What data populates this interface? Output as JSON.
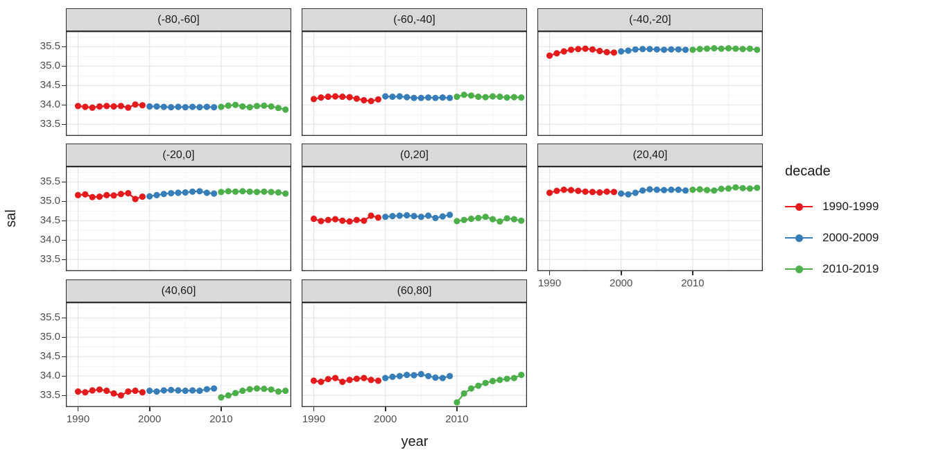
{
  "chart_data": {
    "type": "scatter",
    "title": "",
    "xlabel": "year",
    "ylabel": "sal",
    "xlim": [
      1988.3,
      2019.8
    ],
    "ylim": [
      33.2,
      35.9
    ],
    "grid": true,
    "xticks": {
      "major": [
        1990,
        2000,
        2010
      ],
      "minor": [
        1995,
        2005,
        2015
      ]
    },
    "yticks": {
      "major": [
        33.5,
        34.0,
        34.5,
        35.0,
        35.5
      ],
      "major_labels": [
        "33.5",
        "34.0",
        "34.5",
        "35.0",
        "35.5"
      ],
      "minor": [
        33.25,
        33.75,
        34.25,
        34.75,
        35.25,
        35.75
      ]
    },
    "legend": {
      "title": "decade",
      "position": "right",
      "entries": [
        {
          "label": "1990-1999",
          "color": "#E41A1C"
        },
        {
          "label": "2000-2009",
          "color": "#377EB8"
        },
        {
          "label": "2010-2019",
          "color": "#4DAF4A"
        }
      ]
    },
    "colors": {
      "strip_fill": "#D9D9D9",
      "panel_border": "#2e2e2e",
      "grid_major": "#E3E3E3",
      "grid_minor": "#F1F1F1",
      "axis_text": "#4D4D4D"
    },
    "facets": [
      {
        "label": "(-80,-60]",
        "series": [
          {
            "decade": "1990-1999",
            "start_year": 1990,
            "values": [
              33.97,
              33.95,
              33.93,
              33.96,
              33.97,
              33.96,
              33.97,
              33.93,
              34.01,
              33.99
            ]
          },
          {
            "decade": "2000-2009",
            "start_year": 2000,
            "values": [
              33.96,
              33.96,
              33.95,
              33.94,
              33.95,
              33.94,
              33.95,
              33.94,
              33.95,
              33.94
            ]
          },
          {
            "decade": "2010-2019",
            "start_year": 2010,
            "values": [
              33.95,
              33.98,
              34.0,
              33.96,
              33.94,
              33.97,
              33.98,
              33.96,
              33.92,
              33.88
            ]
          }
        ]
      },
      {
        "label": "(-60,-40]",
        "series": [
          {
            "decade": "1990-1999",
            "start_year": 1990,
            "values": [
              34.15,
              34.19,
              34.21,
              34.22,
              34.21,
              34.2,
              34.16,
              34.12,
              34.1,
              34.14
            ]
          },
          {
            "decade": "2000-2009",
            "start_year": 2000,
            "values": [
              34.22,
              34.21,
              34.22,
              34.2,
              34.18,
              34.18,
              34.19,
              34.18,
              34.19,
              34.18
            ]
          },
          {
            "decade": "2010-2019",
            "start_year": 2010,
            "values": [
              34.21,
              34.26,
              34.24,
              34.21,
              34.2,
              34.22,
              34.21,
              34.19,
              34.2,
              34.19
            ]
          }
        ]
      },
      {
        "label": "(-40,-20]",
        "series": [
          {
            "decade": "1990-1999",
            "start_year": 1990,
            "values": [
              35.27,
              35.33,
              35.38,
              35.42,
              35.44,
              35.45,
              35.43,
              35.39,
              35.36,
              35.35
            ]
          },
          {
            "decade": "2000-2009",
            "start_year": 2000,
            "values": [
              35.38,
              35.4,
              35.43,
              35.44,
              35.44,
              35.43,
              35.42,
              35.43,
              35.43,
              35.42
            ]
          },
          {
            "decade": "2010-2019",
            "start_year": 2010,
            "values": [
              35.42,
              35.44,
              35.45,
              35.46,
              35.45,
              35.46,
              35.45,
              35.44,
              35.45,
              35.42
            ]
          }
        ]
      },
      {
        "label": "(-20,0]",
        "series": [
          {
            "decade": "1990-1999",
            "start_year": 1990,
            "values": [
              35.16,
              35.18,
              35.11,
              35.12,
              35.16,
              35.15,
              35.19,
              35.21,
              35.06,
              35.12
            ]
          },
          {
            "decade": "2000-2009",
            "start_year": 2000,
            "values": [
              35.13,
              35.16,
              35.19,
              35.21,
              35.22,
              35.23,
              35.25,
              35.26,
              35.22,
              35.2
            ]
          },
          {
            "decade": "2010-2019",
            "start_year": 2010,
            "values": [
              35.24,
              35.26,
              35.25,
              35.26,
              35.25,
              35.24,
              35.25,
              35.24,
              35.23,
              35.2
            ]
          }
        ]
      },
      {
        "label": "(0,20]",
        "series": [
          {
            "decade": "1990-1999",
            "start_year": 1990,
            "values": [
              34.55,
              34.49,
              34.52,
              34.54,
              34.5,
              34.48,
              34.52,
              34.5,
              34.63,
              34.58
            ]
          },
          {
            "decade": "2000-2009",
            "start_year": 2000,
            "values": [
              34.6,
              34.62,
              34.63,
              34.64,
              34.62,
              34.6,
              34.63,
              34.57,
              34.61,
              34.65
            ]
          },
          {
            "decade": "2010-2019",
            "start_year": 2010,
            "values": [
              34.49,
              34.52,
              34.55,
              34.57,
              34.6,
              34.54,
              34.48,
              34.56,
              34.54,
              34.5
            ]
          }
        ]
      },
      {
        "label": "(20,40]",
        "series": [
          {
            "decade": "1990-1999",
            "start_year": 1990,
            "values": [
              35.22,
              35.27,
              35.3,
              35.29,
              35.27,
              35.25,
              35.24,
              35.23,
              35.25,
              35.24
            ]
          },
          {
            "decade": "2000-2009",
            "start_year": 2000,
            "values": [
              35.2,
              35.18,
              35.22,
              35.28,
              35.31,
              35.3,
              35.29,
              35.3,
              35.3,
              35.28
            ]
          },
          {
            "decade": "2010-2019",
            "start_year": 2010,
            "values": [
              35.3,
              35.31,
              35.29,
              35.28,
              35.32,
              35.33,
              35.36,
              35.34,
              35.33,
              35.35
            ]
          }
        ]
      },
      {
        "label": "(40,60]",
        "series": [
          {
            "decade": "1990-1999",
            "start_year": 1990,
            "values": [
              33.6,
              33.58,
              33.63,
              33.65,
              33.62,
              33.55,
              33.5,
              33.6,
              33.62,
              33.58
            ]
          },
          {
            "decade": "2000-2009",
            "start_year": 2000,
            "values": [
              33.62,
              33.6,
              33.63,
              33.64,
              33.63,
              33.62,
              33.63,
              33.62,
              33.66,
              33.68
            ]
          },
          {
            "decade": "2010-2019",
            "start_year": 2010,
            "values": [
              33.45,
              33.5,
              33.56,
              33.62,
              33.66,
              33.68,
              33.67,
              33.65,
              33.6,
              33.62
            ]
          }
        ]
      },
      {
        "label": "(60,80]",
        "series": [
          {
            "decade": "1990-1999",
            "start_year": 1990,
            "values": [
              33.88,
              33.85,
              33.92,
              33.95,
              33.85,
              33.9,
              33.93,
              33.95,
              33.9,
              33.88
            ]
          },
          {
            "decade": "2000-2009",
            "start_year": 2000,
            "values": [
              33.95,
              33.98,
              34.0,
              34.03,
              34.02,
              34.05,
              34.0,
              33.96,
              33.95,
              34.0
            ]
          },
          {
            "decade": "2010-2019",
            "start_year": 2010,
            "values": [
              33.32,
              33.55,
              33.68,
              33.75,
              33.82,
              33.87,
              33.9,
              33.93,
              33.95,
              34.03
            ]
          }
        ]
      }
    ]
  }
}
